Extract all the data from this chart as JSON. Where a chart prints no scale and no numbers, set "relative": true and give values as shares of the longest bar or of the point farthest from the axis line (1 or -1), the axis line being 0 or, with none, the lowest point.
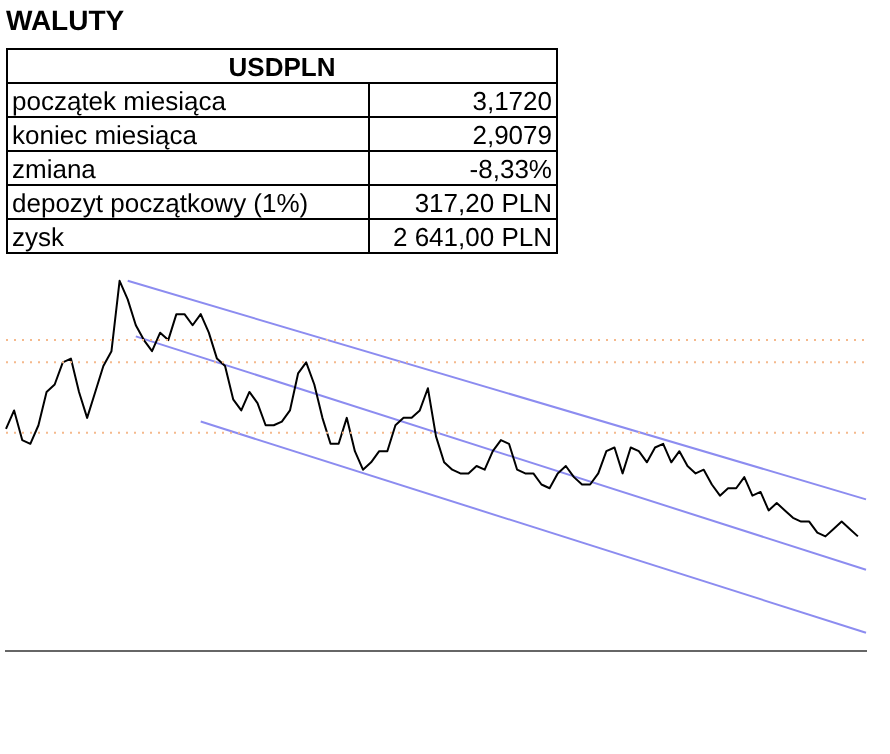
{
  "chart_data": [
    {
      "type": "other",
      "title": "WALUTY",
      "subtitle": "USDPLN",
      "categories": [
        "początek miesiąca",
        "koniec miesiąca",
        "zmiana",
        "depozyt początkowy (1%)",
        "zysk"
      ],
      "value_labels": [
        "3,1720",
        "2,9079",
        "-8,33%",
        "317,20 PLN",
        "2 641,00 PLN"
      ]
    },
    {
      "type": "line",
      "relative": true,
      "grid": false,
      "legend": false,
      "marker": "none",
      "categories": [
        null,
        null,
        null,
        null,
        null,
        null,
        null,
        null,
        null,
        null,
        null,
        null,
        null,
        null,
        null,
        null,
        null,
        null,
        null,
        null,
        null,
        null,
        null,
        null,
        null,
        null,
        null,
        null,
        null,
        null,
        null,
        null,
        null,
        null,
        null,
        null,
        null,
        null,
        null,
        null,
        null,
        null,
        null,
        null,
        null,
        null,
        null,
        null,
        null,
        null,
        null,
        null,
        null,
        null,
        null,
        null,
        null,
        null,
        null,
        null,
        null,
        null,
        null,
        null,
        null,
        null,
        null,
        null,
        null,
        null,
        null,
        null,
        null,
        null,
        null,
        null,
        null,
        null,
        null,
        null,
        null,
        null,
        null,
        null,
        null,
        null,
        null,
        null,
        null,
        null,
        null,
        null,
        null,
        null,
        null,
        null,
        null,
        null,
        null,
        null,
        null,
        null,
        null,
        null,
        null,
        null,
        null
      ],
      "series": [
        {
          "color": "#000000",
          "values": [
            0.6,
            0.65,
            0.57,
            0.56,
            0.61,
            0.7,
            0.72,
            0.78,
            0.79,
            0.7,
            0.63,
            0.7,
            0.77,
            0.81,
            1.0,
            0.95,
            0.88,
            0.84,
            0.81,
            0.86,
            0.84,
            0.91,
            0.91,
            0.88,
            0.91,
            0.86,
            0.79,
            0.77,
            0.68,
            0.65,
            0.7,
            0.67,
            0.61,
            0.61,
            0.62,
            0.65,
            0.75,
            0.78,
            0.72,
            0.63,
            0.56,
            0.56,
            0.63,
            0.54,
            0.49,
            0.51,
            0.54,
            0.54,
            0.61,
            0.63,
            0.63,
            0.65,
            0.71,
            0.58,
            0.51,
            0.49,
            0.48,
            0.48,
            0.5,
            0.49,
            0.54,
            0.57,
            0.56,
            0.49,
            0.48,
            0.48,
            0.45,
            0.44,
            0.48,
            0.5,
            0.47,
            0.45,
            0.45,
            0.48,
            0.54,
            0.55,
            0.48,
            0.55,
            0.54,
            0.51,
            0.55,
            0.56,
            0.51,
            0.54,
            0.5,
            0.48,
            0.49,
            0.45,
            0.42,
            0.44,
            0.44,
            0.47,
            0.42,
            0.43,
            0.38,
            0.4,
            0.38,
            0.36,
            0.35,
            0.35,
            0.32,
            0.31,
            0.33,
            0.35,
            0.33,
            0.31,
            null
          ]
        },
        {
          "color": "#8c8cf0",
          "values": [
            null,
            null,
            null,
            null,
            null,
            null,
            null,
            null,
            null,
            null,
            null,
            null,
            null,
            null,
            null,
            1.0,
            null,
            null,
            null,
            null,
            null,
            null,
            null,
            null,
            null,
            null,
            null,
            null,
            null,
            null,
            null,
            null,
            null,
            null,
            null,
            null,
            null,
            null,
            null,
            null,
            null,
            null,
            null,
            null,
            null,
            null,
            null,
            null,
            null,
            null,
            null,
            null,
            null,
            null,
            null,
            null,
            null,
            null,
            null,
            null,
            null,
            null,
            null,
            null,
            null,
            null,
            null,
            null,
            null,
            null,
            null,
            null,
            null,
            null,
            null,
            null,
            null,
            null,
            null,
            null,
            null,
            null,
            null,
            null,
            null,
            null,
            null,
            null,
            null,
            null,
            null,
            null,
            null,
            null,
            null,
            null,
            null,
            null,
            null,
            null,
            null,
            null,
            null,
            null,
            null,
            null,
            0.41
          ]
        },
        {
          "color": "#8c8cf0",
          "values": [
            null,
            null,
            null,
            null,
            null,
            null,
            null,
            null,
            null,
            null,
            null,
            null,
            null,
            null,
            null,
            null,
            0.85,
            null,
            null,
            null,
            null,
            null,
            null,
            null,
            null,
            null,
            null,
            null,
            null,
            null,
            null,
            null,
            null,
            null,
            null,
            null,
            null,
            null,
            null,
            null,
            null,
            null,
            null,
            null,
            null,
            null,
            null,
            null,
            null,
            null,
            null,
            null,
            null,
            null,
            null,
            null,
            null,
            null,
            null,
            null,
            null,
            null,
            null,
            null,
            null,
            null,
            null,
            null,
            null,
            null,
            null,
            null,
            null,
            null,
            null,
            null,
            null,
            null,
            null,
            null,
            null,
            null,
            null,
            null,
            null,
            null,
            null,
            null,
            null,
            null,
            null,
            null,
            null,
            null,
            null,
            null,
            null,
            null,
            null,
            null,
            null,
            null,
            null,
            null,
            null,
            null,
            0.22
          ]
        },
        {
          "color": "#8c8cf0",
          "values": [
            null,
            null,
            null,
            null,
            null,
            null,
            null,
            null,
            null,
            null,
            null,
            null,
            null,
            null,
            null,
            null,
            null,
            null,
            null,
            null,
            null,
            null,
            null,
            null,
            0.62,
            null,
            null,
            null,
            null,
            null,
            null,
            null,
            null,
            null,
            null,
            null,
            null,
            null,
            null,
            null,
            null,
            null,
            null,
            null,
            null,
            null,
            null,
            null,
            null,
            null,
            null,
            null,
            null,
            null,
            null,
            null,
            null,
            null,
            null,
            null,
            null,
            null,
            null,
            null,
            null,
            null,
            null,
            null,
            null,
            null,
            null,
            null,
            null,
            null,
            null,
            null,
            null,
            null,
            null,
            null,
            null,
            null,
            null,
            null,
            null,
            null,
            null,
            null,
            null,
            null,
            null,
            null,
            null,
            null,
            null,
            null,
            null,
            null,
            null,
            null,
            null,
            null,
            null,
            null,
            null,
            null,
            0.05
          ]
        }
      ],
      "ref_lines": [
        {
          "axis": "y",
          "value": 0.78,
          "color": "#f5b98c",
          "line_style": "dotted"
        },
        {
          "axis": "y",
          "value": 0.84,
          "color": "#f5b98c",
          "line_style": "dotted"
        },
        {
          "axis": "y",
          "value": 0.59,
          "color": "#f5b98c",
          "line_style": "dotted"
        }
      ]
    }
  ]
}
